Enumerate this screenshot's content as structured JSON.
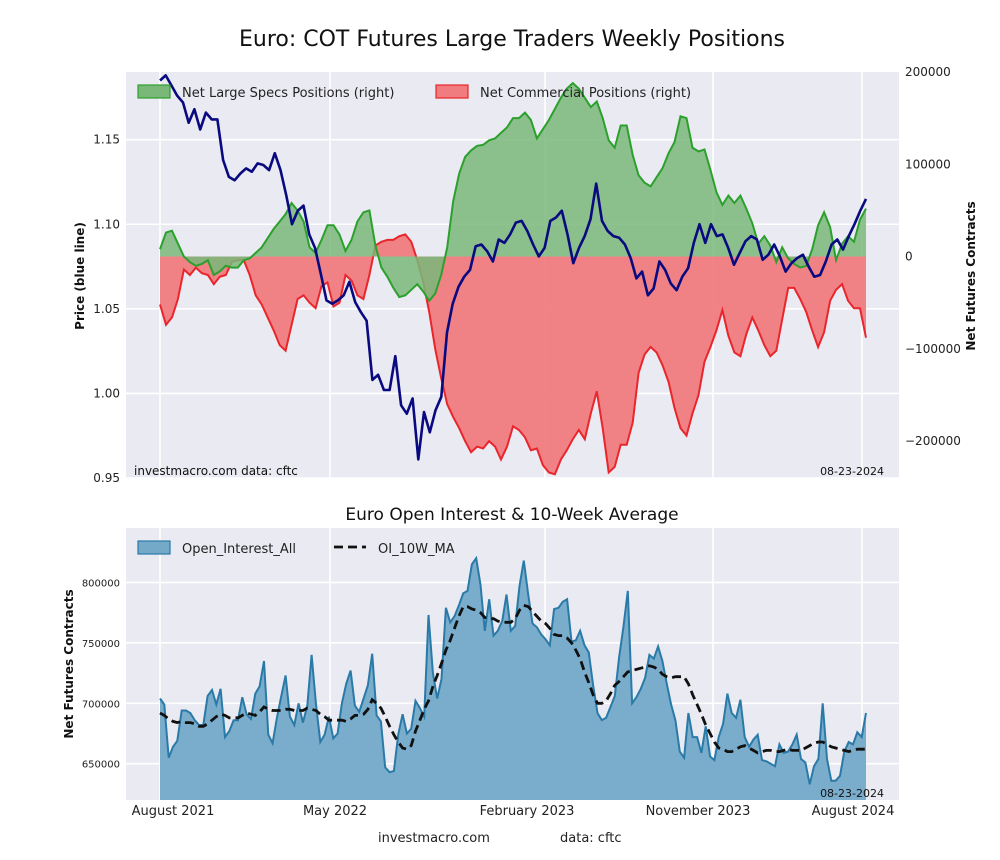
{
  "title": "Euro: COT Futures Large Traders Weekly Positions",
  "footer": {
    "site": "investmacro.com",
    "data": "data: cftc"
  },
  "chart_data": [
    {
      "type": "area",
      "title": "Euro: COT Futures Large Traders Weekly Positions",
      "ylabel_left": "Price (blue line)",
      "ylabel_right": "Net Futures Contracts",
      "ylim_left": [
        0.95,
        1.19
      ],
      "ylim_right": [
        -240000,
        200000
      ],
      "yticks_left": [
        "0.95",
        "1.00",
        "1.05",
        "1.10",
        "1.15"
      ],
      "yticks_right": [
        "−200000",
        "−100000",
        "0",
        "100000",
        "200000"
      ],
      "grid": true,
      "legend_position": "top-left",
      "annotation_left": "investmacro.com    data: cftc",
      "annotation_right": "08-23-2024",
      "colors": {
        "specs": "#2ca02c",
        "specs_fill": "#7ab87a",
        "commercial": "#e8262b",
        "commercial_fill": "#f07c80",
        "price": "#0a0a80"
      },
      "x_start": "2021-07-30",
      "x_end": "2024-08-23",
      "series": [
        {
          "name": "Net Large Specs Positions (right)",
          "axis": "right",
          "values": [
            8000,
            26000,
            28000,
            14000,
            0,
            -6000,
            -10000,
            -8000,
            -4000,
            -20000,
            -16000,
            -10000,
            -12000,
            -12000,
            -4000,
            -2000,
            4000,
            10000,
            20000,
            30000,
            38000,
            46000,
            58000,
            50000,
            38000,
            10000,
            4000,
            18000,
            34000,
            34000,
            24000,
            6000,
            18000,
            38000,
            48000,
            50000,
            12000,
            -12000,
            -22000,
            -34000,
            -44000,
            -42000,
            -36000,
            -30000,
            -38000,
            -48000,
            -40000,
            -20000,
            10000,
            60000,
            90000,
            108000,
            115000,
            120000,
            121000,
            126000,
            128000,
            134000,
            140000,
            150000,
            150000,
            156000,
            148000,
            128000,
            138000,
            148000,
            160000,
            172000,
            182000,
            188000,
            182000,
            172000,
            162000,
            168000,
            150000,
            126000,
            118000,
            142000,
            142000,
            110000,
            88000,
            80000,
            76000,
            86000,
            96000,
            112000,
            124000,
            152000,
            150000,
            118000,
            114000,
            116000,
            94000,
            70000,
            56000,
            66000,
            58000,
            66000,
            52000,
            36000,
            14000,
            22000,
            12000,
            -6000,
            10000,
            -2000,
            -8000,
            -12000,
            -10000,
            8000,
            34000,
            48000,
            32000,
            -4000,
            14000,
            22000,
            16000,
            40000,
            52000
          ],
          "area": true
        },
        {
          "name": "Net Commercial Positions (right)",
          "axis": "right",
          "values": [
            -52000,
            -74000,
            -66000,
            -46000,
            -14000,
            -20000,
            -12000,
            -18000,
            -20000,
            -30000,
            -22000,
            -20000,
            -6000,
            -4000,
            -4000,
            -20000,
            -42000,
            -52000,
            -66000,
            -80000,
            -96000,
            -102000,
            -74000,
            -46000,
            -42000,
            -50000,
            -56000,
            -32000,
            -28000,
            -54000,
            -50000,
            -20000,
            -26000,
            -42000,
            -46000,
            -20000,
            12000,
            16000,
            18000,
            18000,
            22000,
            24000,
            16000,
            -4000,
            -28000,
            -60000,
            -100000,
            -132000,
            -160000,
            -174000,
            -186000,
            -200000,
            -212000,
            -206000,
            -208000,
            -200000,
            -206000,
            -220000,
            -206000,
            -184000,
            -188000,
            -196000,
            -210000,
            -208000,
            -226000,
            -234000,
            -236000,
            -220000,
            -210000,
            -198000,
            -188000,
            -198000,
            -170000,
            -146000,
            -186000,
            -234000,
            -228000,
            -204000,
            -204000,
            -180000,
            -126000,
            -106000,
            -98000,
            -104000,
            -118000,
            -136000,
            -164000,
            -186000,
            -194000,
            -170000,
            -150000,
            -114000,
            -98000,
            -80000,
            -58000,
            -86000,
            -104000,
            -108000,
            -84000,
            -66000,
            -80000,
            -96000,
            -108000,
            -102000,
            -68000,
            -34000,
            -34000,
            -46000,
            -60000,
            -80000,
            -98000,
            -82000,
            -48000,
            -36000,
            -30000,
            -48000,
            -56000,
            -56000,
            -88000
          ],
          "area": true
        },
        {
          "name": "Price",
          "axis": "left",
          "color": "#0a0a80",
          "values": [
            1.185,
            1.188,
            1.182,
            1.176,
            1.172,
            1.16,
            1.168,
            1.156,
            1.166,
            1.162,
            1.162,
            1.138,
            1.128,
            1.126,
            1.13,
            1.133,
            1.131,
            1.136,
            1.135,
            1.132,
            1.142,
            1.132,
            1.117,
            1.1,
            1.108,
            1.111,
            1.094,
            1.086,
            1.071,
            1.055,
            1.053,
            1.055,
            1.058,
            1.066,
            1.054,
            1.048,
            1.043,
            1.008,
            1.011,
            1.002,
            1.002,
            1.022,
            0.993,
            0.988,
            0.997,
            0.961,
            0.989,
            0.977,
            0.99,
            0.998,
            1.036,
            1.053,
            1.063,
            1.069,
            1.073,
            1.087,
            1.088,
            1.084,
            1.078,
            1.091,
            1.089,
            1.094,
            1.101,
            1.102,
            1.096,
            1.088,
            1.081,
            1.086,
            1.102,
            1.104,
            1.108,
            1.094,
            1.077,
            1.086,
            1.093,
            1.103,
            1.124,
            1.102,
            1.096,
            1.093,
            1.092,
            1.088,
            1.08,
            1.068,
            1.072,
            1.058,
            1.062,
            1.078,
            1.073,
            1.065,
            1.061,
            1.069,
            1.074,
            1.089,
            1.1,
            1.089,
            1.1,
            1.093,
            1.094,
            1.086,
            1.076,
            1.083,
            1.09,
            1.093,
            1.091,
            1.079,
            1.082,
            1.088,
            1.081,
            1.072,
            1.077,
            1.08,
            1.082,
            1.075,
            1.069,
            1.07,
            1.078,
            1.088,
            1.091,
            1.085,
            1.093,
            1.1,
            1.108,
            1.115
          ]
        }
      ]
    },
    {
      "type": "area",
      "title": "Euro Open Interest & 10-Week Average",
      "ylabel": "Net Futures Contracts",
      "ylim": [
        620000,
        845000
      ],
      "yticks": [
        "650000",
        "700000",
        "750000",
        "800000"
      ],
      "grid": true,
      "legend_position": "top-left",
      "annotation_right": "08-23-2024",
      "x_tick_labels": [
        "August 2021",
        "May 2022",
        "February 2023",
        "November 2023",
        "August 2024"
      ],
      "x_start": "2021-07-30",
      "x_end": "2024-08-23",
      "colors": {
        "oi_line": "#2a7aa8",
        "oi_fill": "#74a9c8",
        "ma": "#111111"
      },
      "series": [
        {
          "name": "Open_Interest_All",
          "values": [
            704000,
            699000,
            655000,
            664000,
            669000,
            694000,
            694000,
            692000,
            686000,
            682000,
            682000,
            706000,
            711000,
            699000,
            712000,
            672000,
            677000,
            686000,
            686000,
            705000,
            691000,
            687000,
            708000,
            714000,
            735000,
            674000,
            667000,
            688000,
            706000,
            723000,
            689000,
            682000,
            700000,
            684000,
            698000,
            740000,
            700000,
            668000,
            674000,
            689000,
            671000,
            675000,
            700000,
            716000,
            727000,
            698000,
            693000,
            704000,
            715000,
            741000,
            690000,
            685000,
            647000,
            643000,
            644000,
            674000,
            691000,
            675000,
            679000,
            702000,
            696000,
            689000,
            773000,
            725000,
            704000,
            720000,
            779000,
            767000,
            772000,
            781000,
            791000,
            793000,
            815000,
            820000,
            798000,
            760000,
            786000,
            756000,
            760000,
            768000,
            790000,
            760000,
            764000,
            797000,
            818000,
            790000,
            766000,
            763000,
            757000,
            753000,
            748000,
            778000,
            779000,
            784000,
            786000,
            751000,
            752000,
            760000,
            748000,
            742000,
            715000,
            692000,
            686000,
            688000,
            697000,
            706000,
            738000,
            763000,
            793000,
            700000,
            705000,
            712000,
            721000,
            740000,
            737000,
            747000,
            735000,
            716000,
            699000,
            686000,
            660000,
            655000,
            692000,
            672000,
            672000,
            659000,
            681000,
            656000,
            653000,
            672000,
            683000,
            708000,
            692000,
            688000,
            703000,
            672000,
            664000,
            670000,
            674000,
            653000,
            652000,
            650000,
            648000,
            666000,
            659000,
            660000,
            666000,
            674000,
            654000,
            651000,
            633000,
            648000,
            654000,
            700000,
            654000,
            636000,
            636000,
            640000,
            660000,
            668000,
            666000,
            676000,
            672000,
            692000
          ],
          "area": true
        },
        {
          "name": "OI_10W_MA",
          "style": "dashed",
          "values": [
            692000,
            690000,
            687000,
            685000,
            684000,
            685000,
            684000,
            684000,
            683000,
            681000,
            681000,
            683000,
            686000,
            689000,
            691000,
            690000,
            688000,
            688000,
            688000,
            690000,
            692000,
            691000,
            690000,
            693000,
            697000,
            695000,
            694000,
            694000,
            694000,
            695000,
            695000,
            694000,
            694000,
            694000,
            696000,
            695000,
            694000,
            691000,
            689000,
            686000,
            686000,
            686000,
            686000,
            685000,
            687000,
            690000,
            690000,
            691000,
            695000,
            703000,
            700000,
            696000,
            689000,
            681000,
            674000,
            668000,
            663000,
            662000,
            665000,
            677000,
            686000,
            695000,
            702000,
            714000,
            723000,
            733000,
            744000,
            752000,
            762000,
            772000,
            780000,
            780000,
            778000,
            777000,
            775000,
            771000,
            770000,
            770000,
            768000,
            767000,
            767000,
            767000,
            770000,
            777000,
            781000,
            780000,
            776000,
            772000,
            768000,
            766000,
            762000,
            757000,
            756000,
            756000,
            754000,
            750000,
            744000,
            737000,
            726000,
            717000,
            707000,
            700000,
            700000,
            702000,
            708000,
            715000,
            718000,
            722000,
            726000,
            727000,
            728000,
            729000,
            730000,
            731000,
            730000,
            728000,
            724000,
            722000,
            721000,
            722000,
            722000,
            722000,
            716000,
            707000,
            699000,
            691000,
            682000,
            675000,
            668000,
            663000,
            662000,
            660000,
            660000,
            662000,
            664000,
            665000,
            663000,
            661000,
            659000,
            660000,
            661000,
            661000,
            660000,
            660000,
            661000,
            662000,
            661000,
            661000,
            661000,
            663000,
            665000,
            667000,
            668000,
            668000,
            666000,
            664000,
            663000,
            662000,
            661000,
            660000,
            661000,
            662000,
            662000,
            662000
          ],
          "area": false
        }
      ]
    }
  ]
}
